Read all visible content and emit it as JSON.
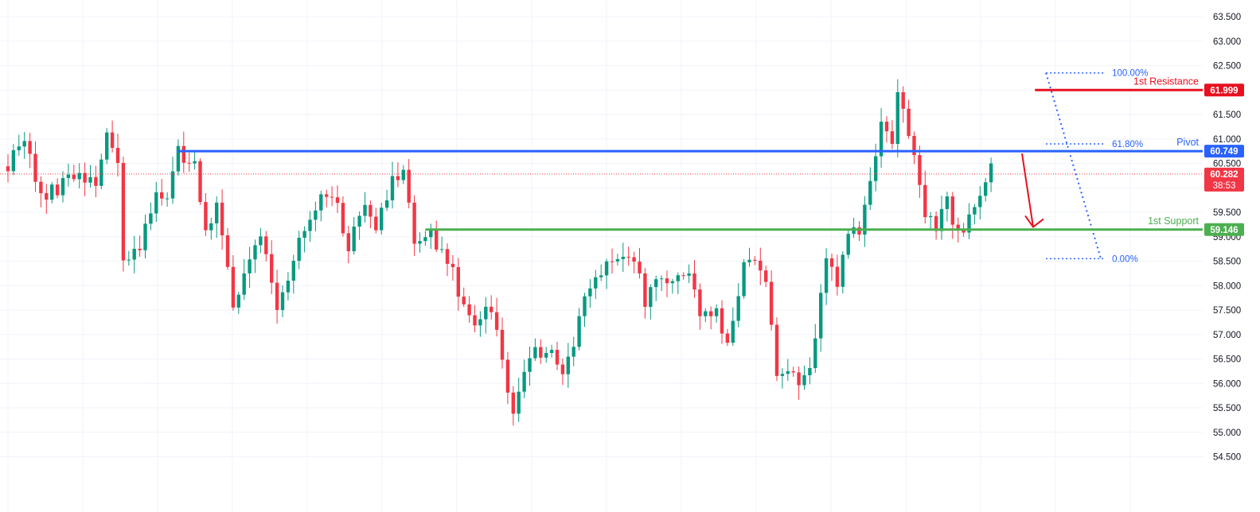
{
  "colors": {
    "bull": "#089981",
    "bear": "#f23645",
    "resistance": "#e8101f",
    "pivot": "#2962ff",
    "support": "#4caf50",
    "fib": "#2962ff",
    "grid": "#f0f3fa",
    "price_line": "#f23645"
  },
  "chart_data": {
    "type": "candlestick",
    "ylim": [
      54.3,
      63.7
    ],
    "y_ticks": [
      "54.500",
      "55.000",
      "55.500",
      "56.000",
      "56.500",
      "57.000",
      "57.500",
      "58.000",
      "58.500",
      "59.000",
      "59.500",
      "60.000",
      "60.500",
      "61.000",
      "61.500",
      "62.000",
      "62.500",
      "63.000",
      "63.500"
    ],
    "grid": true,
    "levels": [
      {
        "name": "1st Resistance",
        "value": 61.999,
        "tag": "61.999",
        "color_key": "resistance",
        "start_index": 187
      },
      {
        "name": "Pivot",
        "value": 60.749,
        "tag": "60.749",
        "color_key": "pivot",
        "start_index": 31
      },
      {
        "name": "1st Support",
        "value": 59.146,
        "tag": "59.146",
        "color_key": "support",
        "start_index": 76
      }
    ],
    "current_price": {
      "value": 60.282,
      "tag": "60.282",
      "countdown": "38:53"
    },
    "fibonacci": {
      "high": {
        "index": 189,
        "value": 62.35
      },
      "low": {
        "index": 199,
        "value": 58.55
      },
      "levels": [
        {
          "ratio": 1.0,
          "label": "100.00%"
        },
        {
          "ratio": 0.618,
          "label": "61.80%"
        },
        {
          "ratio": 0.0,
          "label": "0.00%"
        }
      ]
    },
    "projection_arrow": {
      "from_index": 212,
      "from_value": 60.7,
      "to_index": 214,
      "to_value": 59.2
    },
    "anchors": [
      [
        0,
        60.5
      ],
      [
        3,
        61.05
      ],
      [
        6,
        59.75
      ],
      [
        9,
        60.0
      ],
      [
        13,
        60.35
      ],
      [
        16,
        60.05
      ],
      [
        18,
        61.1
      ],
      [
        20,
        60.6
      ],
      [
        21,
        58.6
      ],
      [
        24,
        58.7
      ],
      [
        27,
        60.0
      ],
      [
        29,
        59.8
      ],
      [
        31,
        60.8
      ],
      [
        34,
        60.4
      ],
      [
        36,
        59.1
      ],
      [
        38,
        59.75
      ],
      [
        41,
        57.6
      ],
      [
        44,
        58.5
      ],
      [
        46,
        59.0
      ],
      [
        49,
        57.5
      ],
      [
        52,
        58.6
      ],
      [
        54,
        59.2
      ],
      [
        57,
        59.8
      ],
      [
        60,
        59.65
      ],
      [
        62,
        58.8
      ],
      [
        65,
        59.8
      ],
      [
        67,
        59.2
      ],
      [
        70,
        60.1
      ],
      [
        72,
        60.25
      ],
      [
        74,
        58.9
      ],
      [
        77,
        59.0
      ],
      [
        80,
        58.6
      ],
      [
        82,
        57.9
      ],
      [
        85,
        57.3
      ],
      [
        88,
        57.6
      ],
      [
        90,
        56.5
      ],
      [
        92,
        55.4
      ],
      [
        94,
        56.2
      ],
      [
        96,
        56.7
      ],
      [
        99,
        56.6
      ],
      [
        101,
        56.1
      ],
      [
        104,
        57.3
      ],
      [
        106,
        58.0
      ],
      [
        109,
        58.35
      ],
      [
        111,
        58.7
      ],
      [
        114,
        58.6
      ],
      [
        116,
        57.6
      ],
      [
        118,
        58.2
      ],
      [
        121,
        58.0
      ],
      [
        124,
        58.35
      ],
      [
        126,
        57.4
      ],
      [
        129,
        57.4
      ],
      [
        131,
        56.9
      ],
      [
        134,
        58.4
      ],
      [
        136,
        58.6
      ],
      [
        138,
        58.1
      ],
      [
        140,
        56.1
      ],
      [
        142,
        56.3
      ],
      [
        144,
        55.9
      ],
      [
        146,
        56.4
      ],
      [
        149,
        58.4
      ],
      [
        151,
        58.1
      ],
      [
        153,
        59.2
      ],
      [
        155,
        59.0
      ],
      [
        157,
        60.15
      ],
      [
        159,
        61.45
      ],
      [
        161,
        60.9
      ],
      [
        162,
        61.95
      ],
      [
        164,
        61.0
      ],
      [
        166,
        60.2
      ],
      [
        167,
        59.35
      ],
      [
        169,
        59.2
      ],
      [
        171,
        59.7
      ],
      [
        173,
        59.0
      ],
      [
        175,
        59.35
      ],
      [
        176,
        59.55
      ],
      [
        178,
        60.15
      ],
      [
        179,
        60.5
      ]
    ],
    "xmax": 180
  }
}
